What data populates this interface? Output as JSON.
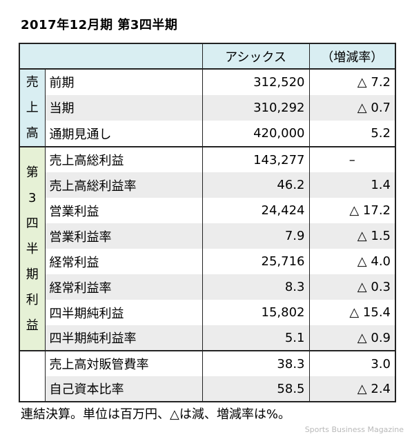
{
  "title": "2017年12月期 第3四半期",
  "header": {
    "company": "アシックス",
    "change": "（増減率）"
  },
  "groups": {
    "sales": [
      "売",
      "上",
      "高"
    ],
    "q3": [
      "第",
      "3",
      "四",
      "半",
      "期",
      "利",
      "益"
    ]
  },
  "rows": [
    {
      "label": "前期",
      "value": "312,520",
      "change": "△ 7.2"
    },
    {
      "label": "当期",
      "value": "310,292",
      "change": "△ 0.7"
    },
    {
      "label": "通期見通し",
      "value": "420,000",
      "change": "5.2"
    },
    {
      "label": "売上高総利益",
      "value": "143,277",
      "change": "–"
    },
    {
      "label": "売上高総利益率",
      "value": "46.2",
      "change": "1.4"
    },
    {
      "label": "営業利益",
      "value": "24,424",
      "change": "△ 17.2"
    },
    {
      "label": "営業利益率",
      "value": "7.9",
      "change": "△ 1.5"
    },
    {
      "label": "経常利益",
      "value": "25,716",
      "change": "△ 4.0"
    },
    {
      "label": "経常利益率",
      "value": "8.3",
      "change": "△ 0.3"
    },
    {
      "label": "四半期純利益",
      "value": "15,802",
      "change": "△ 15.4"
    },
    {
      "label": "四半期純利益率",
      "value": "5.1",
      "change": "△ 0.9"
    },
    {
      "label": "売上高対販管費率",
      "value": "38.3",
      "change": "3.0"
    },
    {
      "label": "自己資本比率",
      "value": "58.5",
      "change": "△ 2.4"
    }
  ],
  "note": "連結決算。単位は百万円、△は減、増減率は%。",
  "credit": "Sports Business Magazine"
}
